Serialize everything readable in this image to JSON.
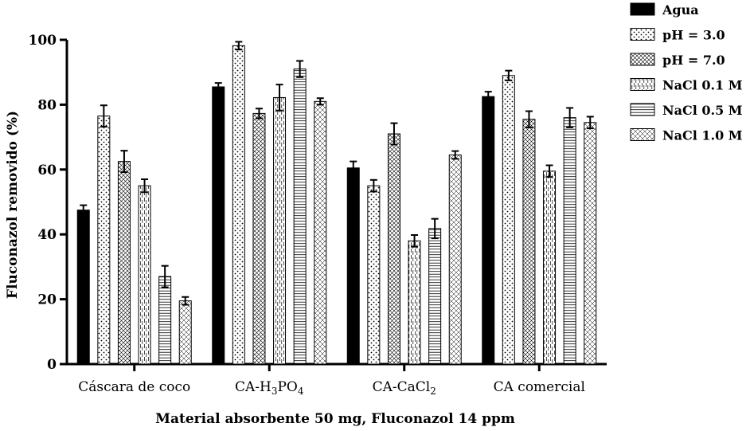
{
  "chart_data": {
    "type": "bar",
    "categories": [
      "Cáscara de coco",
      "CA-H3PO4",
      "CA-CaCl2",
      "CA comercial"
    ],
    "category_display": [
      {
        "main": "Cáscara de coco",
        "parts": []
      },
      {
        "main": "",
        "parts": [
          [
            "CA-H",
            ""
          ],
          [
            "3",
            "sub"
          ],
          [
            "PO",
            ""
          ],
          [
            "4",
            "sub"
          ]
        ]
      },
      {
        "main": "",
        "parts": [
          [
            "CA-CaCl",
            ""
          ],
          [
            "2",
            "sub"
          ]
        ]
      },
      {
        "main": "CA comercial",
        "parts": []
      }
    ],
    "series": [
      {
        "name": "Agua",
        "pattern": "solid",
        "values": [
          47.5,
          85.5,
          60.5,
          82.5
        ],
        "errors": [
          1.5,
          1.2,
          2.0,
          1.5
        ]
      },
      {
        "name": "pH = 3.0",
        "pattern": "dots",
        "values": [
          76.5,
          98.2,
          55.0,
          89.0
        ],
        "errors": [
          3.3,
          1.2,
          1.8,
          1.5
        ]
      },
      {
        "name": "pH = 7.0",
        "pattern": "crosshatch",
        "values": [
          62.5,
          77.3,
          71.0,
          75.5
        ],
        "errors": [
          3.3,
          1.5,
          3.3,
          2.5
        ]
      },
      {
        "name": "NaCl 0.1 M",
        "pattern": "vertical-dashes",
        "values": [
          55.0,
          82.2,
          38.0,
          59.5
        ],
        "errors": [
          2.0,
          4.0,
          1.8,
          1.8
        ]
      },
      {
        "name": "NaCl 0.5 M",
        "pattern": "horizontal-lines",
        "values": [
          27.0,
          91.0,
          41.8,
          76.0
        ],
        "errors": [
          3.3,
          2.5,
          3.0,
          3.0
        ]
      },
      {
        "name": "NaCl 1.0 M",
        "pattern": "diamond-grid",
        "values": [
          19.5,
          81.0,
          64.5,
          74.5
        ],
        "errors": [
          1.2,
          1.0,
          1.2,
          1.8
        ]
      }
    ],
    "yticks": [
      0,
      20,
      40,
      60,
      80,
      100
    ],
    "ylim": [
      0,
      100
    ],
    "xlabel": "Material absorbente 50 mg, Fluconazol 14 ppm",
    "ylabel": "Fluconazol removido (%)",
    "legend_position": "top-right",
    "bar_color": "#000000"
  }
}
